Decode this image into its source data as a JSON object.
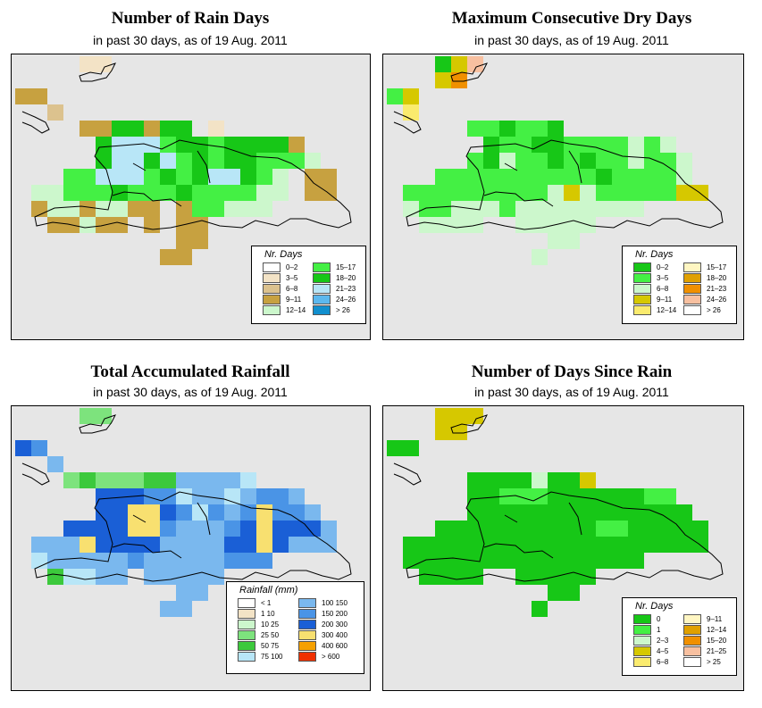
{
  "panels": [
    {
      "title": "Number of Rain Days",
      "subtitle": "in past 30 days, as of  19 Aug. 2011",
      "legend": {
        "title": "Nr. Days",
        "items": [
          {
            "label": "0–2",
            "color": "#ffffff"
          },
          {
            "label": "3–5",
            "color": "#f3e3c6"
          },
          {
            "label": "6–8",
            "color": "#dcc28e"
          },
          {
            "label": "9–11",
            "color": "#c7a140"
          },
          {
            "label": "12–14",
            "color": "#ccf7cc"
          },
          {
            "label": "15–17",
            "color": "#44f044"
          },
          {
            "label": "18–20",
            "color": "#17c717"
          },
          {
            "label": "21–23",
            "color": "#b8e6f7"
          },
          {
            "label": "24–26",
            "color": "#5cb8ee"
          },
          {
            "label": "> 26",
            "color": "#118fce"
          }
        ]
      }
    },
    {
      "title": "Maximum Consecutive Dry Days",
      "subtitle": "in past 30 days, as of  19 Aug. 2011",
      "legend": {
        "title": "Nr. Days",
        "items": [
          {
            "label": "0–2",
            "color": "#17c717"
          },
          {
            "label": "3–5",
            "color": "#44f044"
          },
          {
            "label": "6–8",
            "color": "#ccf7cc"
          },
          {
            "label": "9–11",
            "color": "#d6c800"
          },
          {
            "label": "12–14",
            "color": "#faeb6e"
          },
          {
            "label": "15–17",
            "color": "#fff6c2"
          },
          {
            "label": "18–20",
            "color": "#e0a000"
          },
          {
            "label": "21–23",
            "color": "#f09000"
          },
          {
            "label": "24–26",
            "color": "#f8c0a0"
          },
          {
            "label": "> 26",
            "color": "#ffffff"
          }
        ]
      }
    },
    {
      "title": "Total Accumulated Rainfall",
      "subtitle": "in past 30 days, as of  19 Aug. 2011",
      "legend": {
        "title": "Rainfall (mm)",
        "items": [
          {
            "label": "< 1",
            "color": "#ffffff"
          },
          {
            "label": "1    10",
            "color": "#f3e3c6"
          },
          {
            "label": "10    25",
            "color": "#ccf7cc"
          },
          {
            "label": "25    50",
            "color": "#7de37d"
          },
          {
            "label": "50    75",
            "color": "#3cc93c"
          },
          {
            "label": "75  100",
            "color": "#b8e6f7"
          },
          {
            "label": "100  150",
            "color": "#7ab8ee"
          },
          {
            "label": "150  200",
            "color": "#4a94e6"
          },
          {
            "label": "200  300",
            "color": "#1a5fd6"
          },
          {
            "label": "300  400",
            "color": "#f8e070"
          },
          {
            "label": "400  600",
            "color": "#f5a000"
          },
          {
            "label": "> 600",
            "color": "#f03000"
          }
        ]
      }
    },
    {
      "title": "Number of Days Since Rain",
      "subtitle": "in past 30 days, as of  19 Aug. 2011",
      "legend": {
        "title": "Nr. Days",
        "items": [
          {
            "label": "0",
            "color": "#17c717"
          },
          {
            "label": "1",
            "color": "#44f044"
          },
          {
            "label": "2–3",
            "color": "#ccf7cc"
          },
          {
            "label": "4–5",
            "color": "#d6c800"
          },
          {
            "label": "6–8",
            "color": "#faeb6e"
          },
          {
            "label": "9–11",
            "color": "#fff6c2"
          },
          {
            "label": "12–14",
            "color": "#e0a000"
          },
          {
            "label": "15–20",
            "color": "#f09000"
          },
          {
            "label": "21–25",
            "color": "#f8c0a0"
          },
          {
            "label": "> 25",
            "color": "#ffffff"
          }
        ]
      }
    }
  ]
}
